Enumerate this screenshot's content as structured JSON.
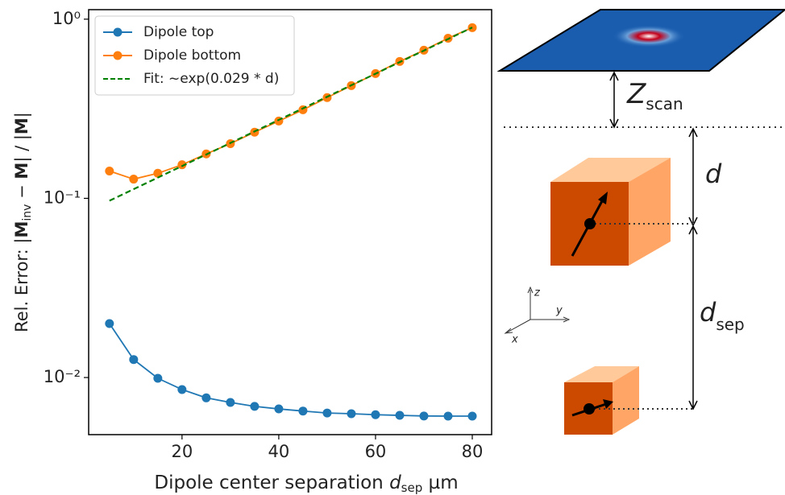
{
  "chart_data": {
    "type": "line",
    "x": [
      5,
      10,
      15,
      20,
      25,
      30,
      35,
      40,
      45,
      50,
      55,
      60,
      65,
      70,
      75,
      80
    ],
    "series": [
      {
        "name": "Dipole top",
        "color": "#1f77b4",
        "marker": "o",
        "linestyle": "solid",
        "values": [
          0.02,
          0.0126,
          0.0099,
          0.00857,
          0.0077,
          0.00726,
          0.0069,
          0.00668,
          0.0065,
          0.00634,
          0.00628,
          0.0062,
          0.00615,
          0.0061,
          0.00609,
          0.00609
        ]
      },
      {
        "name": "Dipole bottom",
        "color": "#ff7f0e",
        "marker": "o",
        "linestyle": "solid",
        "values": [
          0.142,
          0.128,
          0.138,
          0.154,
          0.177,
          0.202,
          0.234,
          0.27,
          0.312,
          0.365,
          0.426,
          0.497,
          0.581,
          0.671,
          0.783,
          0.897
        ]
      },
      {
        "name": "Fit: ~exp(0.029 * d)",
        "color": "#008000",
        "marker": "none",
        "linestyle": "dashed",
        "values": [
          0.097,
          0.1125,
          0.1305,
          0.1514,
          0.1756,
          0.2037,
          0.2363,
          0.2741,
          0.318,
          0.369,
          0.428,
          0.496,
          0.576,
          0.668,
          0.775,
          0.899
        ]
      }
    ],
    "xlim": [
      0.7,
      84
    ],
    "ylim": [
      0.0048,
      1.13
    ],
    "yscale": "log",
    "xticks": [
      20,
      40,
      60,
      80
    ],
    "yticks": [
      {
        "value": 0.01,
        "label": "10⁻²"
      },
      {
        "value": 0.1,
        "label": "10⁻¹"
      },
      {
        "value": 1,
        "label": "10⁰"
      }
    ],
    "xlabel_parts": [
      "Dipole center separation ",
      "d",
      "sep",
      "  µm"
    ],
    "ylabel_parts": [
      "Rel. Error:  |",
      "M",
      "inv",
      " − ",
      "M",
      "| / |",
      "M",
      "|"
    ],
    "legend": "upper left",
    "grid": false
  },
  "diagram": {
    "z_scan": [
      "Z",
      "scan"
    ],
    "d": "d",
    "d_sep": [
      "d",
      "sep"
    ],
    "axes": [
      "z",
      "y",
      "x"
    ]
  }
}
